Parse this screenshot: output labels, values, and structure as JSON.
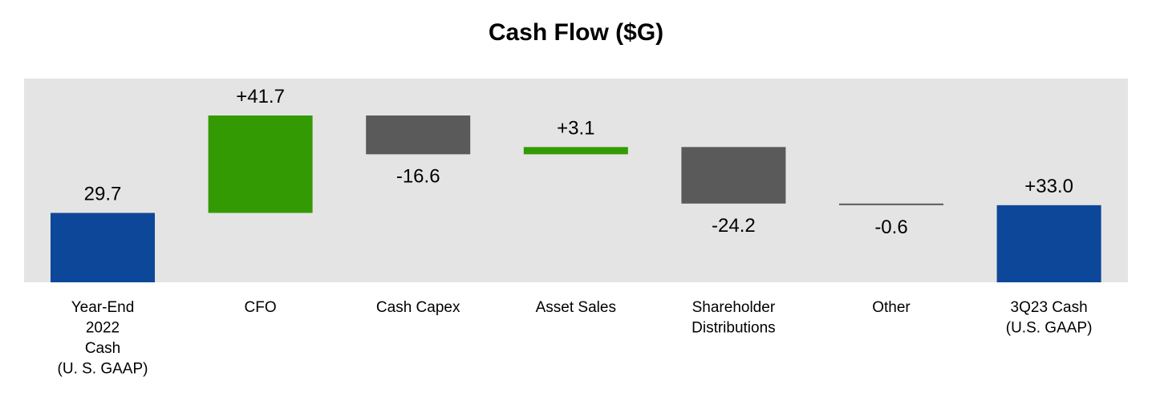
{
  "chart_data": {
    "type": "bar",
    "subtype": "waterfall",
    "title": "Cash Flow ($G)",
    "xlabel": "",
    "ylabel": "",
    "ylim": [
      0,
      50
    ],
    "grid": false,
    "legend": "none",
    "categories": [
      [
        "Year-End",
        "2022",
        "Cash",
        "(U. S. GAAP)"
      ],
      [
        "CFO"
      ],
      [
        "Cash Capex"
      ],
      [
        "Asset Sales"
      ],
      [
        "Shareholder",
        "Distributions"
      ],
      [
        "Other"
      ],
      [
        "3Q23 Cash",
        "(U.S. GAAP)"
      ]
    ],
    "values": [
      29.7,
      41.7,
      -16.6,
      3.1,
      -24.2,
      -0.6,
      33.0
    ],
    "value_labels": [
      "29.7",
      "+41.7",
      "-16.6",
      "+3.1",
      "-24.2",
      "-0.6",
      "+33.0"
    ],
    "bar_kinds": [
      "total",
      "delta",
      "delta",
      "delta",
      "delta",
      "delta",
      "total"
    ],
    "colors": {
      "total": "#0d4799",
      "increase": "#339a04",
      "decrease": "#5a5a5a",
      "plot_background": "#e4e4e4"
    }
  }
}
